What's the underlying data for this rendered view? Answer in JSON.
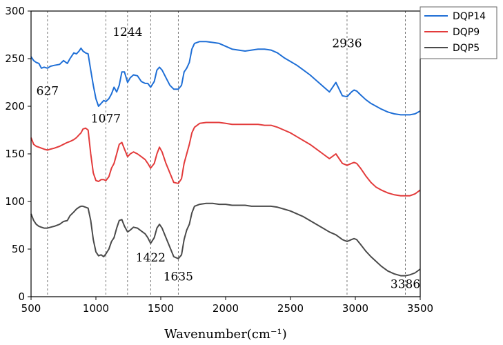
{
  "chart_data": {
    "type": "line",
    "xlabel": "Wavenumber(cm⁻¹)",
    "ylabel": "",
    "xlim": [
      500,
      3500
    ],
    "ylim": [
      0,
      300
    ],
    "x_ticks": [
      500,
      1000,
      1500,
      2000,
      2500,
      3000,
      3500
    ],
    "y_ticks": [
      0,
      50,
      100,
      150,
      200,
      250,
      300
    ],
    "grid": false,
    "legend_position": "top-right",
    "reference_lines": [
      627,
      1077,
      1244,
      1422,
      1635,
      2936,
      3386
    ],
    "annotations": [
      {
        "text": "627",
        "x": 627,
        "y": 212
      },
      {
        "text": "1077",
        "x": 1077,
        "y": 183
      },
      {
        "text": "1244",
        "x": 1244,
        "y": 274
      },
      {
        "text": "1422",
        "x": 1422,
        "y": 37
      },
      {
        "text": "1635",
        "x": 1635,
        "y": 17
      },
      {
        "text": "2936",
        "x": 2936,
        "y": 262
      },
      {
        "text": "3386",
        "x": 3386,
        "y": 9
      }
    ],
    "series": [
      {
        "name": "DQP14",
        "color": "#1f6fd6",
        "points": [
          [
            500,
            252
          ],
          [
            520,
            248
          ],
          [
            540,
            246
          ],
          [
            560,
            245
          ],
          [
            580,
            240
          ],
          [
            600,
            241
          ],
          [
            627,
            240
          ],
          [
            650,
            242
          ],
          [
            680,
            243
          ],
          [
            720,
            244
          ],
          [
            750,
            248
          ],
          [
            780,
            245
          ],
          [
            800,
            250
          ],
          [
            830,
            256
          ],
          [
            850,
            255
          ],
          [
            870,
            258
          ],
          [
            885,
            261
          ],
          [
            900,
            258
          ],
          [
            920,
            256
          ],
          [
            940,
            255
          ],
          [
            960,
            238
          ],
          [
            980,
            222
          ],
          [
            1000,
            208
          ],
          [
            1020,
            200
          ],
          [
            1040,
            203
          ],
          [
            1060,
            206
          ],
          [
            1077,
            205
          ],
          [
            1100,
            208
          ],
          [
            1120,
            213
          ],
          [
            1140,
            220
          ],
          [
            1160,
            215
          ],
          [
            1180,
            222
          ],
          [
            1200,
            236
          ],
          [
            1220,
            236
          ],
          [
            1244,
            225
          ],
          [
            1265,
            230
          ],
          [
            1290,
            233
          ],
          [
            1320,
            232
          ],
          [
            1350,
            226
          ],
          [
            1380,
            224
          ],
          [
            1400,
            224
          ],
          [
            1422,
            220
          ],
          [
            1450,
            226
          ],
          [
            1470,
            238
          ],
          [
            1490,
            241
          ],
          [
            1510,
            238
          ],
          [
            1540,
            230
          ],
          [
            1570,
            222
          ],
          [
            1600,
            218
          ],
          [
            1635,
            218
          ],
          [
            1660,
            222
          ],
          [
            1680,
            236
          ],
          [
            1700,
            240
          ],
          [
            1720,
            246
          ],
          [
            1740,
            260
          ],
          [
            1760,
            266
          ],
          [
            1800,
            268
          ],
          [
            1850,
            268
          ],
          [
            1900,
            267
          ],
          [
            1950,
            266
          ],
          [
            2000,
            263
          ],
          [
            2050,
            260
          ],
          [
            2100,
            259
          ],
          [
            2150,
            258
          ],
          [
            2200,
            259
          ],
          [
            2250,
            260
          ],
          [
            2300,
            260
          ],
          [
            2350,
            259
          ],
          [
            2400,
            256
          ],
          [
            2450,
            251
          ],
          [
            2500,
            247
          ],
          [
            2550,
            243
          ],
          [
            2600,
            238
          ],
          [
            2650,
            233
          ],
          [
            2700,
            227
          ],
          [
            2750,
            221
          ],
          [
            2800,
            215
          ],
          [
            2850,
            225
          ],
          [
            2900,
            211
          ],
          [
            2936,
            210
          ],
          [
            2970,
            215
          ],
          [
            2990,
            217
          ],
          [
            3010,
            216
          ],
          [
            3040,
            212
          ],
          [
            3080,
            207
          ],
          [
            3120,
            203
          ],
          [
            3160,
            200
          ],
          [
            3200,
            197
          ],
          [
            3250,
            194
          ],
          [
            3300,
            192
          ],
          [
            3350,
            191
          ],
          [
            3386,
            191
          ],
          [
            3420,
            191
          ],
          [
            3460,
            192
          ],
          [
            3500,
            195
          ]
        ]
      },
      {
        "name": "DQP9",
        "color": "#e33b3b",
        "points": [
          [
            500,
            167
          ],
          [
            520,
            160
          ],
          [
            540,
            158
          ],
          [
            560,
            157
          ],
          [
            580,
            156
          ],
          [
            600,
            155
          ],
          [
            627,
            154
          ],
          [
            650,
            155
          ],
          [
            680,
            156
          ],
          [
            720,
            158
          ],
          [
            750,
            160
          ],
          [
            780,
            162
          ],
          [
            800,
            163
          ],
          [
            830,
            165
          ],
          [
            850,
            167
          ],
          [
            870,
            170
          ],
          [
            885,
            172
          ],
          [
            900,
            176
          ],
          [
            920,
            177
          ],
          [
            940,
            175
          ],
          [
            960,
            150
          ],
          [
            980,
            130
          ],
          [
            1000,
            122
          ],
          [
            1020,
            121
          ],
          [
            1040,
            123
          ],
          [
            1060,
            123
          ],
          [
            1077,
            122
          ],
          [
            1100,
            126
          ],
          [
            1120,
            135
          ],
          [
            1140,
            140
          ],
          [
            1160,
            150
          ],
          [
            1180,
            160
          ],
          [
            1200,
            162
          ],
          [
            1220,
            155
          ],
          [
            1244,
            147
          ],
          [
            1265,
            150
          ],
          [
            1290,
            152
          ],
          [
            1320,
            150
          ],
          [
            1350,
            147
          ],
          [
            1380,
            144
          ],
          [
            1400,
            140
          ],
          [
            1422,
            135
          ],
          [
            1450,
            140
          ],
          [
            1470,
            150
          ],
          [
            1490,
            157
          ],
          [
            1510,
            152
          ],
          [
            1540,
            140
          ],
          [
            1570,
            130
          ],
          [
            1600,
            120
          ],
          [
            1635,
            119
          ],
          [
            1660,
            124
          ],
          [
            1680,
            140
          ],
          [
            1700,
            150
          ],
          [
            1720,
            160
          ],
          [
            1740,
            172
          ],
          [
            1760,
            178
          ],
          [
            1800,
            182
          ],
          [
            1850,
            183
          ],
          [
            1900,
            183
          ],
          [
            1950,
            183
          ],
          [
            2000,
            182
          ],
          [
            2050,
            181
          ],
          [
            2100,
            181
          ],
          [
            2150,
            181
          ],
          [
            2200,
            181
          ],
          [
            2250,
            181
          ],
          [
            2300,
            180
          ],
          [
            2350,
            180
          ],
          [
            2400,
            178
          ],
          [
            2450,
            175
          ],
          [
            2500,
            172
          ],
          [
            2550,
            168
          ],
          [
            2600,
            164
          ],
          [
            2650,
            160
          ],
          [
            2700,
            155
          ],
          [
            2750,
            150
          ],
          [
            2800,
            145
          ],
          [
            2850,
            150
          ],
          [
            2900,
            140
          ],
          [
            2936,
            138
          ],
          [
            2970,
            140
          ],
          [
            2990,
            141
          ],
          [
            3010,
            140
          ],
          [
            3040,
            135
          ],
          [
            3080,
            127
          ],
          [
            3120,
            120
          ],
          [
            3160,
            115
          ],
          [
            3200,
            112
          ],
          [
            3250,
            109
          ],
          [
            3300,
            107
          ],
          [
            3350,
            106
          ],
          [
            3386,
            106
          ],
          [
            3420,
            106
          ],
          [
            3460,
            108
          ],
          [
            3500,
            112
          ]
        ]
      },
      {
        "name": "DQP5",
        "color": "#4a4a4a",
        "points": [
          [
            500,
            87
          ],
          [
            520,
            80
          ],
          [
            540,
            76
          ],
          [
            560,
            74
          ],
          [
            580,
            73
          ],
          [
            600,
            72
          ],
          [
            627,
            72
          ],
          [
            650,
            73
          ],
          [
            680,
            74
          ],
          [
            720,
            76
          ],
          [
            750,
            79
          ],
          [
            780,
            80
          ],
          [
            800,
            85
          ],
          [
            830,
            89
          ],
          [
            850,
            92
          ],
          [
            870,
            94
          ],
          [
            885,
            95
          ],
          [
            900,
            95
          ],
          [
            920,
            94
          ],
          [
            940,
            93
          ],
          [
            960,
            80
          ],
          [
            980,
            60
          ],
          [
            1000,
            47
          ],
          [
            1020,
            43
          ],
          [
            1040,
            44
          ],
          [
            1060,
            42
          ],
          [
            1077,
            45
          ],
          [
            1100,
            50
          ],
          [
            1120,
            58
          ],
          [
            1140,
            62
          ],
          [
            1160,
            72
          ],
          [
            1180,
            80
          ],
          [
            1200,
            81
          ],
          [
            1220,
            74
          ],
          [
            1244,
            68
          ],
          [
            1265,
            70
          ],
          [
            1290,
            73
          ],
          [
            1320,
            72
          ],
          [
            1350,
            69
          ],
          [
            1380,
            66
          ],
          [
            1400,
            62
          ],
          [
            1422,
            56
          ],
          [
            1450,
            62
          ],
          [
            1470,
            72
          ],
          [
            1490,
            76
          ],
          [
            1510,
            72
          ],
          [
            1540,
            62
          ],
          [
            1570,
            52
          ],
          [
            1600,
            42
          ],
          [
            1635,
            40
          ],
          [
            1660,
            44
          ],
          [
            1680,
            60
          ],
          [
            1700,
            70
          ],
          [
            1720,
            76
          ],
          [
            1740,
            88
          ],
          [
            1760,
            95
          ],
          [
            1800,
            97
          ],
          [
            1850,
            98
          ],
          [
            1900,
            98
          ],
          [
            1950,
            97
          ],
          [
            2000,
            97
          ],
          [
            2050,
            96
          ],
          [
            2100,
            96
          ],
          [
            2150,
            96
          ],
          [
            2200,
            95
          ],
          [
            2250,
            95
          ],
          [
            2300,
            95
          ],
          [
            2350,
            95
          ],
          [
            2400,
            94
          ],
          [
            2450,
            92
          ],
          [
            2500,
            90
          ],
          [
            2550,
            87
          ],
          [
            2600,
            84
          ],
          [
            2650,
            80
          ],
          [
            2700,
            76
          ],
          [
            2750,
            72
          ],
          [
            2800,
            68
          ],
          [
            2850,
            65
          ],
          [
            2900,
            60
          ],
          [
            2936,
            58
          ],
          [
            2970,
            60
          ],
          [
            2990,
            61
          ],
          [
            3010,
            60
          ],
          [
            3040,
            55
          ],
          [
            3080,
            48
          ],
          [
            3120,
            42
          ],
          [
            3160,
            37
          ],
          [
            3200,
            32
          ],
          [
            3250,
            27
          ],
          [
            3300,
            24
          ],
          [
            3350,
            22
          ],
          [
            3386,
            22
          ],
          [
            3420,
            23
          ],
          [
            3460,
            25
          ],
          [
            3500,
            29
          ]
        ]
      }
    ]
  }
}
